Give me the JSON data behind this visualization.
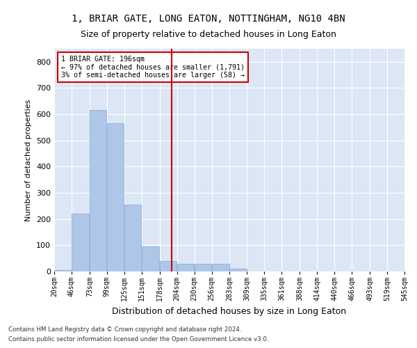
{
  "title_line1": "1, BRIAR GATE, LONG EATON, NOTTINGHAM, NG10 4BN",
  "title_line2": "Size of property relative to detached houses in Long Eaton",
  "xlabel": "Distribution of detached houses by size in Long Eaton",
  "ylabel": "Number of detached properties",
  "footnote1": "Contains HM Land Registry data © Crown copyright and database right 2024.",
  "footnote2": "Contains public sector information licensed under the Open Government Licence v3.0.",
  "annotation_title": "1 BRIAR GATE: 196sqm",
  "annotation_line2": "← 97% of detached houses are smaller (1,791)",
  "annotation_line3": "3% of semi-detached houses are larger (58) →",
  "property_size": 196,
  "bar_color": "#aec6e8",
  "bar_edge_color": "#7bafd4",
  "vline_color": "#cc0000",
  "annotation_box_color": "#cc0000",
  "background_color": "#dce6f5",
  "bins": [
    20,
    46,
    73,
    99,
    125,
    151,
    178,
    204,
    230,
    256,
    283,
    309,
    335,
    361,
    388,
    414,
    440,
    466,
    493,
    519,
    545
  ],
  "counts": [
    5,
    220,
    615,
    565,
    255,
    95,
    40,
    30,
    30,
    30,
    10,
    0,
    0,
    0,
    0,
    0,
    0,
    0,
    0,
    0
  ],
  "ylim": [
    0,
    850
  ],
  "yticks": [
    0,
    100,
    200,
    300,
    400,
    500,
    600,
    700,
    800
  ],
  "grid_color": "#ffffff",
  "title_fontsize": 10,
  "subtitle_fontsize": 9,
  "tick_label_fontsize": 7,
  "ylabel_fontsize": 8,
  "xlabel_fontsize": 9
}
